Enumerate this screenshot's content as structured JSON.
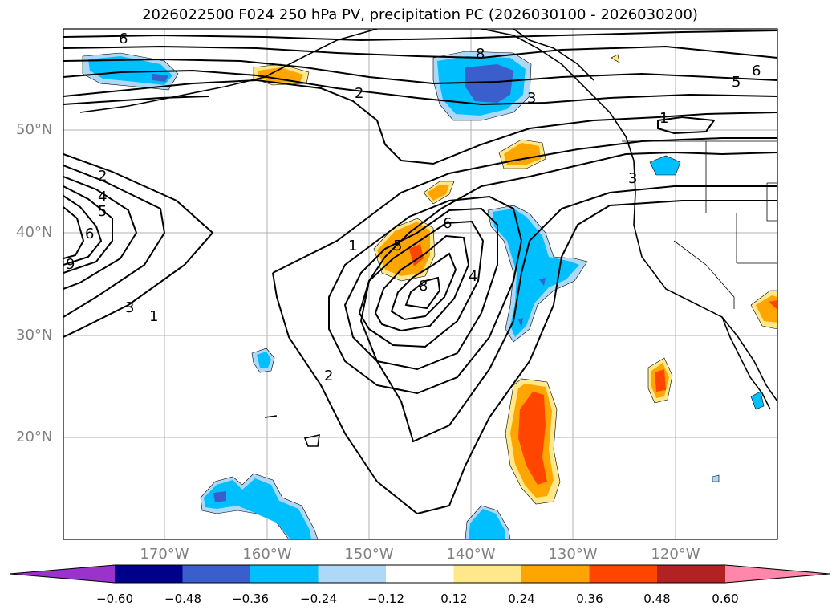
{
  "title": "2026022500 F024 250 hPa PV, precipitation PC (2026030100 - 2026030200)",
  "lat_labels": [
    "50°N",
    "40°N",
    "30°N",
    "20°N"
  ],
  "lon_labels": [
    "170°W",
    "160°W",
    "150°W",
    "140°W",
    "130°W",
    "120°W"
  ],
  "colorbar": {
    "ticks": [
      "−0.60",
      "−0.48",
      "−0.36",
      "−0.24",
      "−0.12",
      "0.12",
      "0.24",
      "0.36",
      "0.48",
      "0.60"
    ],
    "colors": [
      "#9933cc",
      "#00008b",
      "#3a5fcd",
      "#00bfff",
      "#add8f7",
      "#ffffff",
      "#ffe88a",
      "#ffa500",
      "#ff4500",
      "#b22222",
      "#ff88aa"
    ]
  },
  "pv_contour_labels": {
    "north_6": "6",
    "north_8": "8",
    "north_2": "2",
    "north_3": "3",
    "north_5": "5",
    "north_6b": "6",
    "north_1": "1",
    "coast_3": "3",
    "west_2": "2",
    "west_4": "4",
    "west_5": "5",
    "west_6": "6",
    "west_9": "9",
    "west_3": "3",
    "west_1": "1",
    "trough_1": "1",
    "trough_5": "5",
    "trough_6": "6",
    "trough_8": "8",
    "trough_4": "4",
    "trough_2": "2"
  }
}
